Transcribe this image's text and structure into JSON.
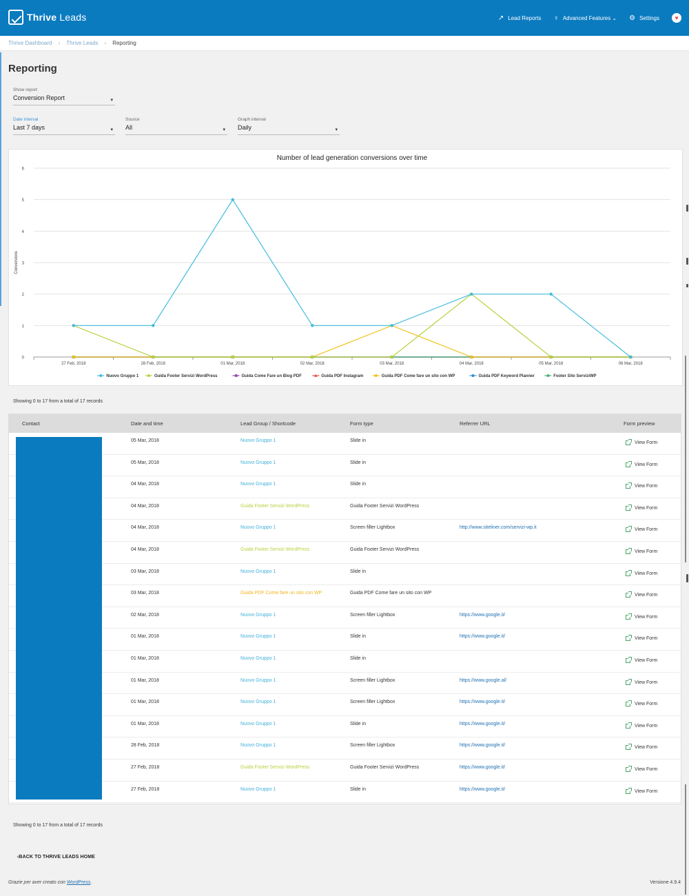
{
  "header": {
    "brand_bold": "Thrive",
    "brand_light": "Leads",
    "nav": [
      {
        "icon": "lead-reports-icon",
        "glyph": "↗",
        "label": "Lead Reports"
      },
      {
        "icon": "lightbulb-icon",
        "glyph": "♀",
        "label": "Advanced Features ⌄"
      },
      {
        "icon": "gear-icon",
        "glyph": "⚙",
        "label": "Settings"
      }
    ],
    "heart": "♥"
  },
  "breadcrumb": {
    "items": [
      "Thrive Dashboard",
      "Thrive Leads"
    ],
    "separator": "›",
    "current": "Reporting"
  },
  "page_title": "Reporting",
  "filters": {
    "show_report": {
      "label": "Show report",
      "value": "Conversion Report"
    },
    "date_interval": {
      "label": "Date interval",
      "value": "Last 7 days"
    },
    "source": {
      "label": "Source",
      "value": "All"
    },
    "graph_interval": {
      "label": "Graph interval",
      "value": "Daily"
    },
    "caret": "▾"
  },
  "chart_data": {
    "type": "line",
    "title": "Number of lead generation conversions over time",
    "xlabel": "",
    "ylabel": "Conversions",
    "ylim": [
      0,
      6
    ],
    "yticks": [
      0,
      1,
      2,
      3,
      4,
      5,
      6
    ],
    "grid": true,
    "legend_position": "bottom",
    "categories": [
      "27 Feb, 2018",
      "28 Feb, 2018",
      "01 Mar, 2018",
      "02 Mar, 2018",
      "03 Mar, 2018",
      "04 Mar, 2018",
      "05 Mar, 2018",
      "06 Mar, 2018"
    ],
    "series": [
      {
        "name": "Nuovo Gruppo 1",
        "color": "#41bcdc",
        "marker": "circle",
        "values": [
          1,
          1,
          5,
          1,
          1,
          2,
          2,
          0
        ]
      },
      {
        "name": "Guida Footer Servizi WordPress",
        "color": "#b5d23f",
        "marker": "circle",
        "values": [
          1,
          0,
          0,
          0,
          0,
          2,
          0,
          0
        ]
      },
      {
        "name": "Guida Come Fare un Blog PDF",
        "color": "#8e44ad",
        "marker": "square",
        "values": [
          0,
          0,
          0,
          0,
          0,
          0,
          0,
          0
        ]
      },
      {
        "name": "Guida PDF Instagram",
        "color": "#e74c3c",
        "marker": "triangle",
        "values": [
          0,
          0,
          0,
          0,
          0,
          0,
          0,
          0
        ]
      },
      {
        "name": "Guida PDF Come fare un sito con WP",
        "color": "#f1c21b",
        "marker": "circle",
        "values": [
          0,
          0,
          0,
          0,
          1,
          0,
          0,
          0
        ]
      },
      {
        "name": "Guida PDF Keyword Planner",
        "color": "#2e8fd0",
        "marker": "circle",
        "values": [
          0,
          0,
          0,
          0,
          0,
          0,
          0,
          0
        ]
      },
      {
        "name": "Footer Sito ServiziWP",
        "color": "#4caf7a",
        "marker": "square",
        "values": [
          0,
          0,
          0,
          0,
          0,
          0,
          0,
          0
        ]
      }
    ]
  },
  "records_summary": "Showing 0 to 17 from a total of 17 records",
  "table": {
    "columns": [
      "Contact",
      "Date and time",
      "Lead Group / Shortcode",
      "Form type",
      "Referrer URL",
      "Form preview"
    ],
    "view_label": "View Form",
    "group_colors": {
      "Nuovo Gruppo 1": "#3fb0d8",
      "Guida Footer Servizi WordPress": "#b5d23f",
      "Guida PDF Come fare un sito con WP": "#f1b51b"
    },
    "rows": [
      {
        "date": "05 Mar, 2018",
        "group": "Nuovo Gruppo 1",
        "form_type": "Slide in",
        "referrer": ""
      },
      {
        "date": "05 Mar, 2018",
        "group": "Nuovo Gruppo 1",
        "form_type": "Slide in",
        "referrer": ""
      },
      {
        "date": "04 Mar, 2018",
        "group": "Nuovo Gruppo 1",
        "form_type": "Slide in",
        "referrer": ""
      },
      {
        "date": "04 Mar, 2018",
        "group": "Guida Footer Servizi WordPress",
        "form_type": "Guida Footer Servizi WordPress",
        "referrer": ""
      },
      {
        "date": "04 Mar, 2018",
        "group": "Nuovo Gruppo 1",
        "form_type": "Screen filler Lightbox",
        "referrer": "http://www.siteliner.com/servizi-wp.it"
      },
      {
        "date": "04 Mar, 2018",
        "group": "Guida Footer Servizi WordPress",
        "form_type": "Guida Footer Servizi WordPress",
        "referrer": ""
      },
      {
        "date": "03 Mar, 2018",
        "group": "Nuovo Gruppo 1",
        "form_type": "Slide in",
        "referrer": ""
      },
      {
        "date": "03 Mar, 2018",
        "group": "Guida PDF Come fare un sito con WP",
        "form_type": "Guida PDF Come fare un sito con WP",
        "referrer": ""
      },
      {
        "date": "02 Mar, 2018",
        "group": "Nuovo Gruppo 1",
        "form_type": "Screen filler Lightbox",
        "referrer": "https://www.google.it/"
      },
      {
        "date": "01 Mar, 2018",
        "group": "Nuovo Gruppo 1",
        "form_type": "Slide in",
        "referrer": "https://www.google.it/"
      },
      {
        "date": "01 Mar, 2018",
        "group": "Nuovo Gruppo 1",
        "form_type": "Slide in",
        "referrer": ""
      },
      {
        "date": "01 Mar, 2018",
        "group": "Nuovo Gruppo 1",
        "form_type": "Screen filler Lightbox",
        "referrer": "https://www.google.al/"
      },
      {
        "date": "01 Mar, 2018",
        "group": "Nuovo Gruppo 1",
        "form_type": "Screen filler Lightbox",
        "referrer": "https://www.google.it/"
      },
      {
        "date": "01 Mar, 2018",
        "group": "Nuovo Gruppo 1",
        "form_type": "Slide in",
        "referrer": "https://www.google.it/"
      },
      {
        "date": "28 Feb, 2018",
        "group": "Nuovo Gruppo 1",
        "form_type": "Screen filler Lightbox",
        "referrer": "https://www.google.it/"
      },
      {
        "date": "27 Feb, 2018",
        "group": "Guida Footer Servizi WordPress",
        "form_type": "Guida Footer Servizi WordPress",
        "referrer": "https://www.google.it/"
      },
      {
        "date": "27 Feb, 2018",
        "group": "Nuovo Gruppo 1",
        "form_type": "Slide in",
        "referrer": "https://www.google.it/"
      }
    ]
  },
  "back_link": "‹BACK TO THRIVE LEADS HOME",
  "footer": {
    "thanks_prefix": "Grazie per aver creato con ",
    "thanks_link": "WordPress",
    "thanks_suffix": ".",
    "version": "Versione 4.9.4"
  },
  "colors": {
    "brand": "#0b7bc0",
    "background": "#f1f1f1"
  }
}
